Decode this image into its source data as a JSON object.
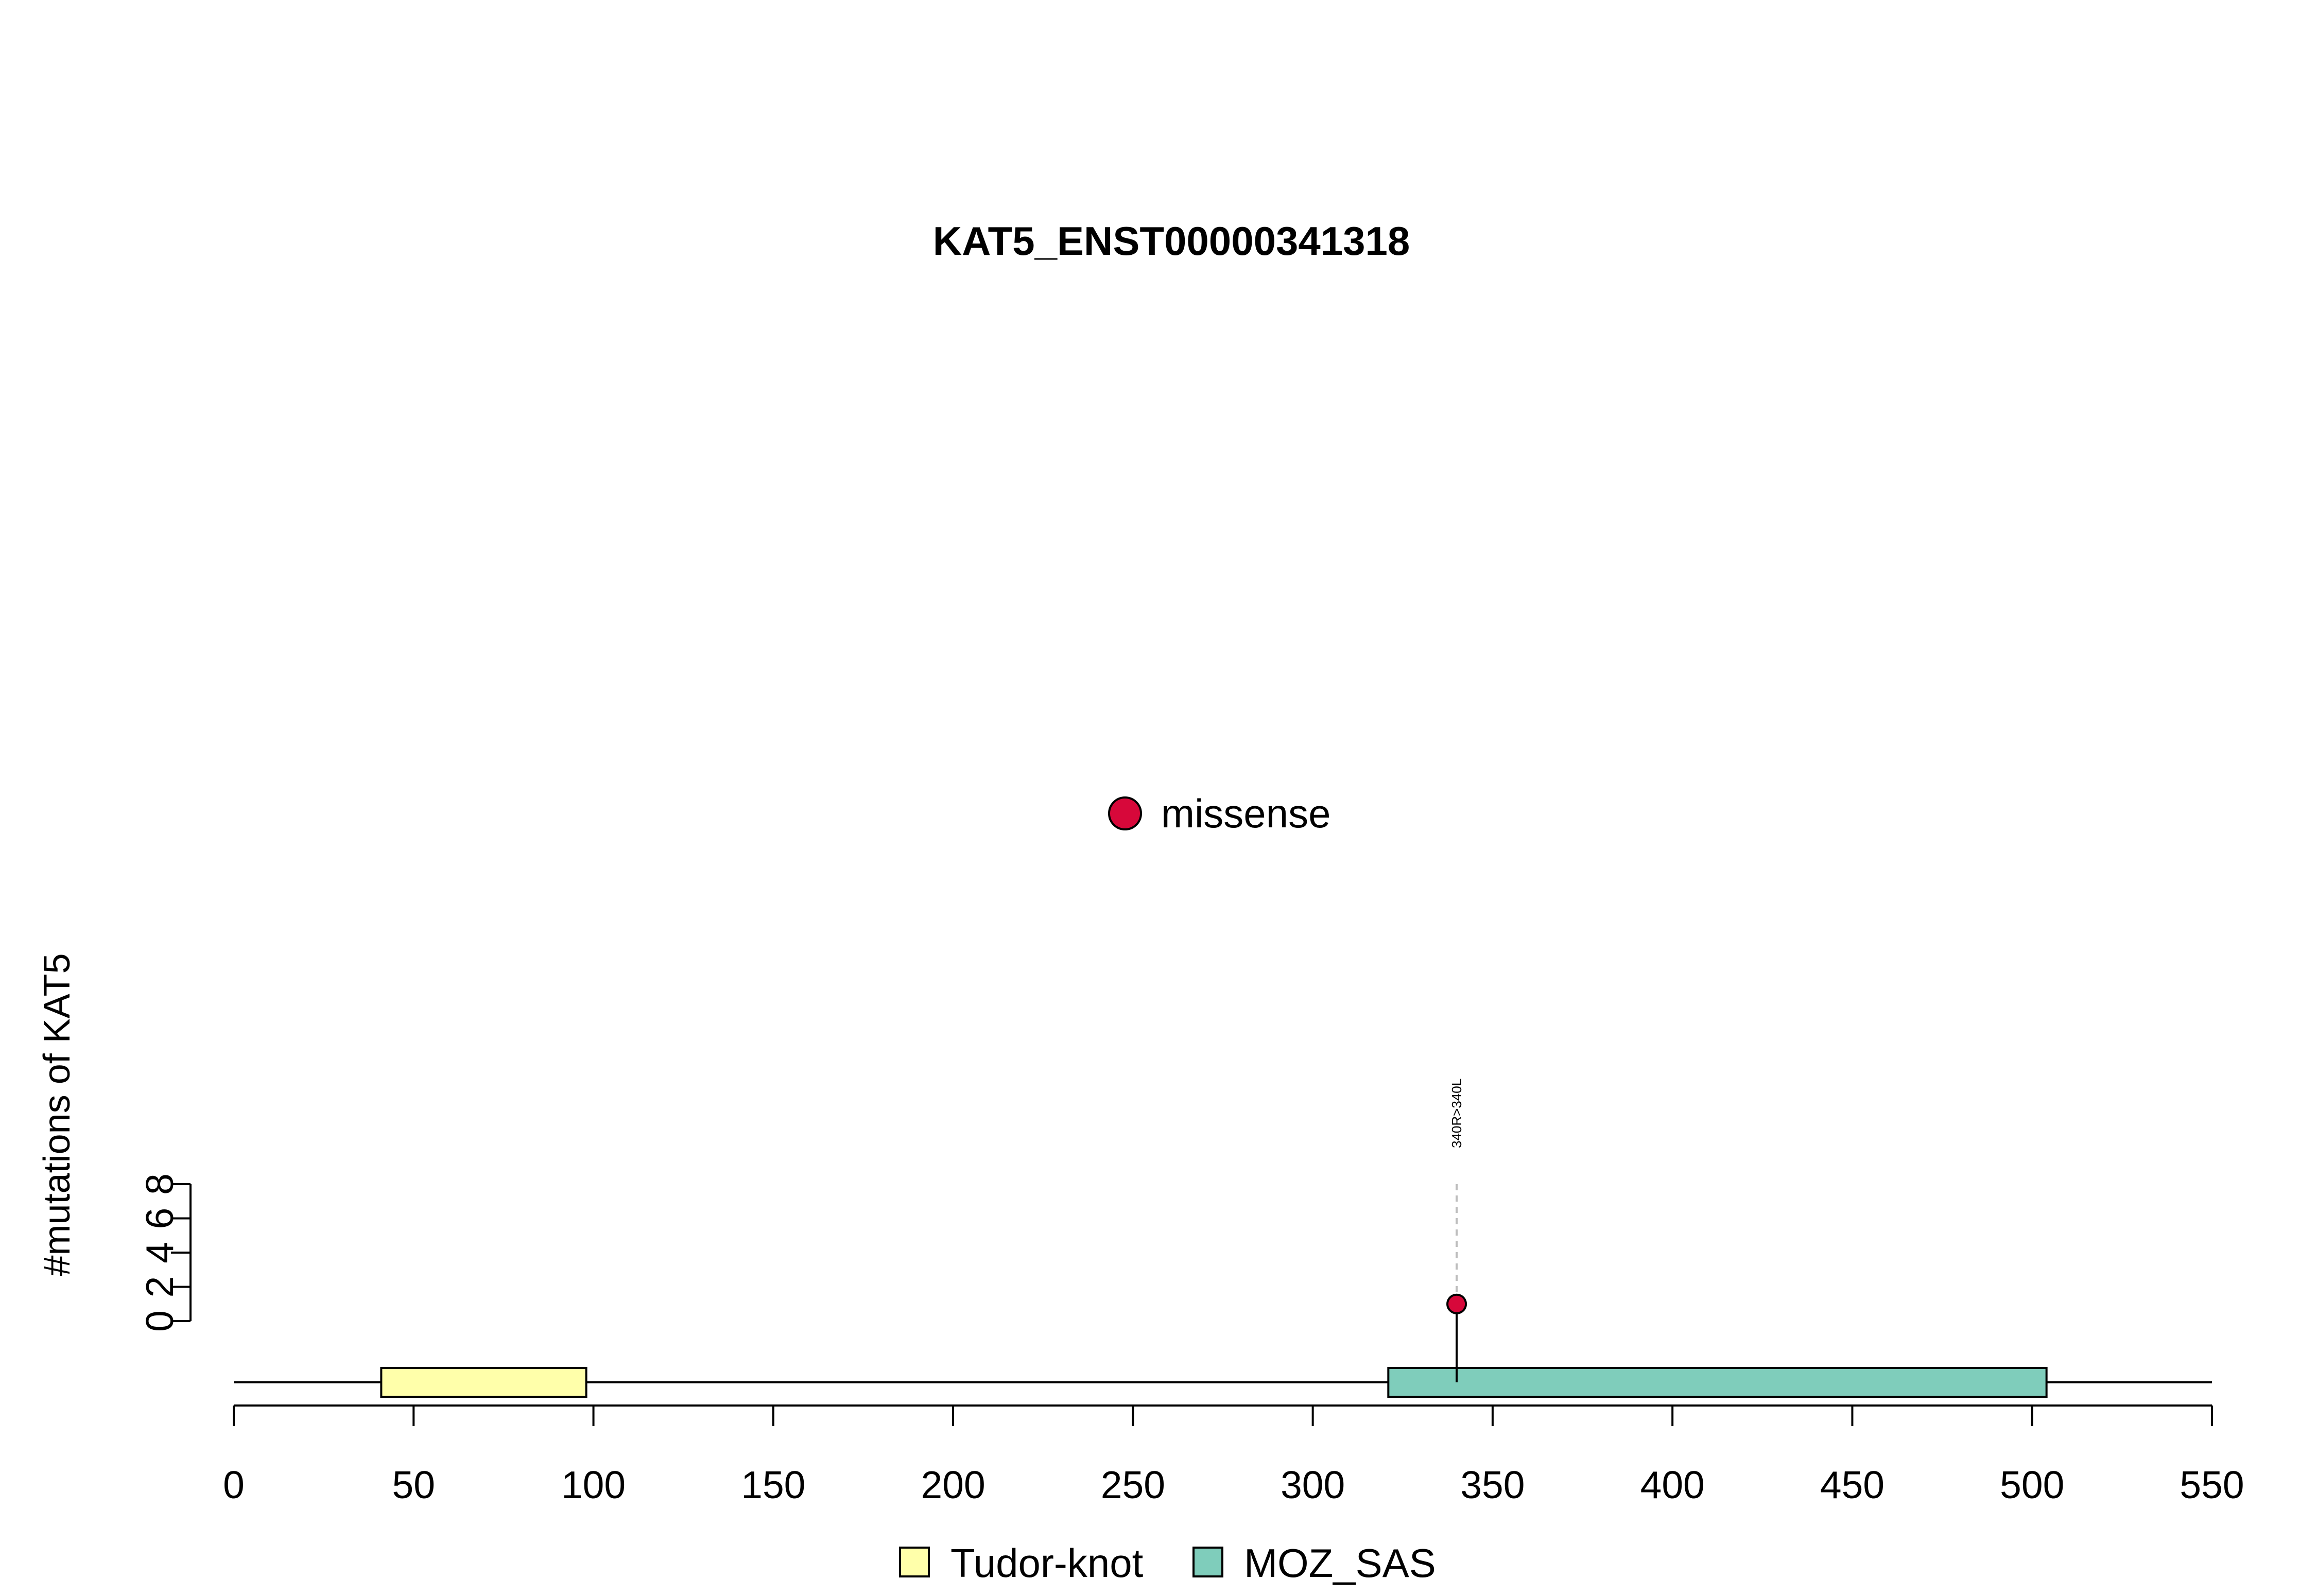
{
  "chart_data": {
    "type": "lollipop",
    "title": "KAT5_ENST00000341318",
    "ylabel": "#mutations of KAT5",
    "xlim": [
      0,
      550
    ],
    "x_ticks": [
      0,
      50,
      100,
      150,
      200,
      250,
      300,
      350,
      400,
      450,
      500,
      550
    ],
    "x_tick_labels": [
      "0",
      "50",
      "100",
      "150",
      "200",
      "250",
      "300",
      "350",
      "400",
      "450",
      "500",
      "550"
    ],
    "ylim": [
      0,
      8
    ],
    "y_ticks": [
      0,
      2,
      4,
      6,
      8
    ],
    "y_tick_labels": [
      "0",
      "2",
      "4",
      "6",
      "8"
    ],
    "protein_length": 550,
    "domains": [
      {
        "name": "Tudor-knot",
        "start": 41,
        "end": 98,
        "color": "#FFFFAA"
      },
      {
        "name": "MOZ_SAS",
        "start": 321,
        "end": 504,
        "color": "#7FCDBB"
      }
    ],
    "mutations": [
      {
        "position": 340,
        "count": 1,
        "label": "340R>340L",
        "type": "missense"
      }
    ],
    "mutation_legend": [
      {
        "label": "missense",
        "color": "#D7083A"
      }
    ],
    "domain_legend_position": "bottom",
    "mutation_legend_position": "center"
  }
}
